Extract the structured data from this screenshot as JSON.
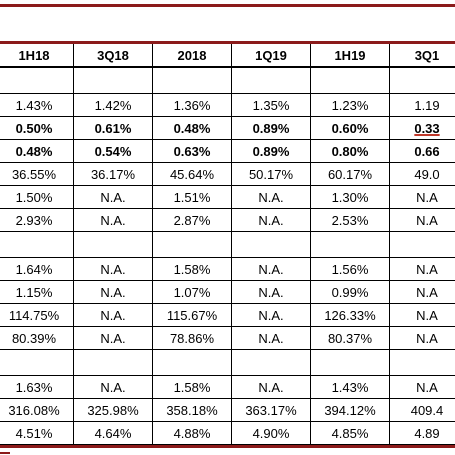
{
  "table": {
    "headers": [
      "1H18",
      "3Q18",
      "2018",
      "1Q19",
      "1H19",
      "3Q1"
    ],
    "rows": [
      {
        "type": "blank",
        "cells": [
          "",
          "",
          "",
          "",
          "",
          ""
        ]
      },
      {
        "type": "data",
        "bold": false,
        "cells": [
          "1.43%",
          "1.42%",
          "1.36%",
          "1.35%",
          "1.23%",
          "1.19"
        ]
      },
      {
        "type": "data",
        "bold": true,
        "cells": [
          "0.50%",
          "0.61%",
          "0.48%",
          "0.89%",
          "0.60%",
          "0.33"
        ]
      },
      {
        "type": "data",
        "bold": true,
        "cells": [
          "0.48%",
          "0.54%",
          "0.63%",
          "0.89%",
          "0.80%",
          "0.66"
        ]
      },
      {
        "type": "data",
        "bold": false,
        "cells": [
          "36.55%",
          "36.17%",
          "45.64%",
          "50.17%",
          "60.17%",
          "49.0"
        ]
      },
      {
        "type": "data",
        "bold": false,
        "cells": [
          "1.50%",
          "N.A.",
          "1.51%",
          "N.A.",
          "1.30%",
          "N.A"
        ]
      },
      {
        "type": "data",
        "bold": false,
        "cells": [
          "2.93%",
          "N.A.",
          "2.87%",
          "N.A.",
          "2.53%",
          "N.A"
        ]
      },
      {
        "type": "blank",
        "cells": [
          "",
          "",
          "",
          "",
          "",
          ""
        ]
      },
      {
        "type": "data",
        "bold": false,
        "cells": [
          "1.64%",
          "N.A.",
          "1.58%",
          "N.A.",
          "1.56%",
          "N.A"
        ]
      },
      {
        "type": "data",
        "bold": false,
        "cells": [
          "1.15%",
          "N.A.",
          "1.07%",
          "N.A.",
          "0.99%",
          "N.A"
        ]
      },
      {
        "type": "data",
        "bold": false,
        "cells": [
          "114.75%",
          "N.A.",
          "115.67%",
          "N.A.",
          "126.33%",
          "N.A"
        ]
      },
      {
        "type": "data",
        "bold": false,
        "cells": [
          "80.39%",
          "N.A.",
          "78.86%",
          "N.A.",
          "80.37%",
          "N.A"
        ]
      },
      {
        "type": "blank",
        "cells": [
          "",
          "",
          "",
          "",
          "",
          ""
        ]
      },
      {
        "type": "data",
        "bold": false,
        "cells": [
          "1.63%",
          "N.A.",
          "1.58%",
          "N.A.",
          "1.43%",
          "N.A"
        ]
      },
      {
        "type": "data",
        "bold": false,
        "cells": [
          "316.08%",
          "325.98%",
          "358.18%",
          "363.17%",
          "394.12%",
          "409.4"
        ]
      },
      {
        "type": "data",
        "bold": false,
        "cells": [
          "4.51%",
          "4.64%",
          "4.88%",
          "4.90%",
          "4.85%",
          "4.89"
        ]
      }
    ]
  },
  "colors": {
    "accent_rule": "#8b1a1a",
    "annotation_underline": "#c0392b"
  }
}
